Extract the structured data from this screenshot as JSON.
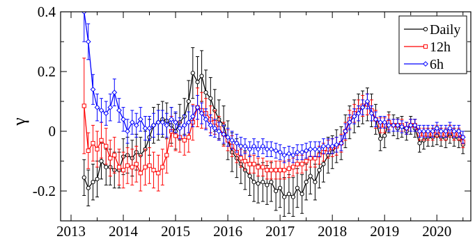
{
  "chart_data": {
    "type": "line",
    "xlabel": "",
    "ylabel": "γ",
    "xlim": [
      2012.8,
      2020.65
    ],
    "ylim": [
      -0.3,
      0.4
    ],
    "xticks": [
      2013,
      2014,
      2015,
      2016,
      2017,
      2018,
      2019,
      2020
    ],
    "yticks": [
      -0.2,
      0,
      0.2,
      0.4
    ],
    "ytick_labels": [
      "-0.2",
      "0",
      "0.2",
      "0.4"
    ],
    "legend_position": "top-right",
    "grid": false,
    "series": [
      {
        "name": "Daily",
        "color": "#000000",
        "marker": "circle",
        "x": [
          2013.25,
          2013.33,
          2013.42,
          2013.5,
          2013.58,
          2013.67,
          2013.75,
          2013.83,
          2013.92,
          2014.0,
          2014.08,
          2014.17,
          2014.25,
          2014.33,
          2014.42,
          2014.5,
          2014.58,
          2014.67,
          2014.75,
          2014.83,
          2014.92,
          2015.0,
          2015.08,
          2015.17,
          2015.25,
          2015.33,
          2015.42,
          2015.5,
          2015.58,
          2015.67,
          2015.75,
          2015.83,
          2015.92,
          2016.0,
          2016.08,
          2016.17,
          2016.25,
          2016.33,
          2016.42,
          2016.5,
          2016.58,
          2016.67,
          2016.75,
          2016.83,
          2016.92,
          2017.0,
          2017.08,
          2017.17,
          2017.25,
          2017.33,
          2017.42,
          2017.5,
          2017.58,
          2017.67,
          2017.75,
          2017.83,
          2017.92,
          2018.0,
          2018.08,
          2018.17,
          2018.25,
          2018.33,
          2018.42,
          2018.5,
          2018.58,
          2018.67,
          2018.75,
          2018.83,
          2018.92,
          2019.0,
          2019.08,
          2019.17,
          2019.25,
          2019.33,
          2019.42,
          2019.5,
          2019.58,
          2019.67,
          2019.75,
          2019.83,
          2019.92,
          2020.0,
          2020.08,
          2020.17,
          2020.25,
          2020.33,
          2020.42,
          2020.5
        ],
        "values": [
          -0.155,
          -0.19,
          -0.17,
          -0.16,
          -0.1,
          -0.12,
          -0.12,
          -0.13,
          -0.13,
          -0.085,
          -0.08,
          -0.09,
          -0.07,
          -0.08,
          -0.06,
          -0.02,
          0.02,
          0.03,
          0.04,
          0.035,
          0.02,
          0.0,
          0.03,
          0.05,
          0.1,
          0.195,
          0.165,
          0.185,
          0.13,
          0.11,
          0.07,
          0.04,
          0.02,
          -0.03,
          -0.07,
          -0.09,
          -0.11,
          -0.13,
          -0.15,
          -0.17,
          -0.175,
          -0.17,
          -0.18,
          -0.17,
          -0.2,
          -0.19,
          -0.22,
          -0.21,
          -0.22,
          -0.19,
          -0.21,
          -0.17,
          -0.15,
          -0.17,
          -0.13,
          -0.11,
          -0.08,
          -0.07,
          -0.05,
          -0.04,
          0.0,
          0.03,
          0.05,
          0.07,
          0.08,
          0.09,
          0.07,
          0.04,
          -0.025,
          -0.015,
          0.03,
          0.02,
          0.01,
          0.015,
          0.0,
          0.02,
          0.01,
          -0.04,
          -0.03,
          -0.02,
          -0.02,
          -0.015,
          -0.02,
          -0.025,
          -0.01,
          -0.02,
          -0.025,
          -0.045
        ],
        "err": [
          0.06,
          0.06,
          0.06,
          0.06,
          0.06,
          0.06,
          0.06,
          0.06,
          0.06,
          0.06,
          0.06,
          0.06,
          0.06,
          0.06,
          0.06,
          0.06,
          0.06,
          0.06,
          0.06,
          0.06,
          0.06,
          0.06,
          0.06,
          0.06,
          0.07,
          0.085,
          0.085,
          0.085,
          0.075,
          0.07,
          0.07,
          0.065,
          0.065,
          0.065,
          0.065,
          0.065,
          0.065,
          0.065,
          0.065,
          0.065,
          0.065,
          0.065,
          0.065,
          0.065,
          0.065,
          0.065,
          0.065,
          0.065,
          0.065,
          0.065,
          0.065,
          0.06,
          0.06,
          0.06,
          0.06,
          0.06,
          0.06,
          0.055,
          0.055,
          0.055,
          0.055,
          0.055,
          0.055,
          0.055,
          0.055,
          0.055,
          0.055,
          0.05,
          0.04,
          0.04,
          0.035,
          0.035,
          0.035,
          0.035,
          0.03,
          0.03,
          0.03,
          0.03,
          0.03,
          0.03,
          0.03,
          0.03,
          0.03,
          0.03,
          0.03,
          0.03,
          0.03,
          0.03
        ]
      },
      {
        "name": "12h",
        "color": "#ff0000",
        "marker": "square",
        "x": [
          2013.25,
          2013.33,
          2013.42,
          2013.5,
          2013.58,
          2013.67,
          2013.75,
          2013.83,
          2013.92,
          2014.0,
          2014.08,
          2014.17,
          2014.25,
          2014.33,
          2014.42,
          2014.5,
          2014.58,
          2014.67,
          2014.75,
          2014.83,
          2014.92,
          2015.0,
          2015.08,
          2015.17,
          2015.25,
          2015.33,
          2015.42,
          2015.5,
          2015.58,
          2015.67,
          2015.75,
          2015.83,
          2015.92,
          2016.0,
          2016.08,
          2016.17,
          2016.25,
          2016.33,
          2016.42,
          2016.5,
          2016.58,
          2016.67,
          2016.75,
          2016.83,
          2016.92,
          2017.0,
          2017.08,
          2017.17,
          2017.25,
          2017.33,
          2017.42,
          2017.5,
          2017.58,
          2017.67,
          2017.75,
          2017.83,
          2017.92,
          2018.0,
          2018.08,
          2018.17,
          2018.25,
          2018.33,
          2018.42,
          2018.5,
          2018.58,
          2018.67,
          2018.75,
          2018.83,
          2018.92,
          2019.0,
          2019.08,
          2019.17,
          2019.25,
          2019.33,
          2019.42,
          2019.5,
          2019.58,
          2019.67,
          2019.75,
          2019.83,
          2019.92,
          2020.0,
          2020.08,
          2020.17,
          2020.25,
          2020.33,
          2020.42,
          2020.5
        ],
        "values": [
          0.085,
          -0.065,
          -0.04,
          -0.06,
          -0.03,
          -0.05,
          -0.09,
          -0.08,
          -0.12,
          -0.13,
          -0.115,
          -0.12,
          -0.11,
          -0.14,
          -0.12,
          -0.115,
          -0.13,
          -0.14,
          -0.12,
          -0.08,
          0.0,
          -0.015,
          -0.02,
          -0.03,
          -0.02,
          0.03,
          0.08,
          0.07,
          0.06,
          0.04,
          0.03,
          0.01,
          -0.01,
          -0.03,
          -0.05,
          -0.07,
          -0.09,
          -0.1,
          -0.11,
          -0.11,
          -0.12,
          -0.12,
          -0.13,
          -0.13,
          -0.13,
          -0.13,
          -0.13,
          -0.125,
          -0.12,
          -0.11,
          -0.11,
          -0.1,
          -0.09,
          -0.09,
          -0.08,
          -0.07,
          -0.06,
          -0.055,
          -0.05,
          -0.04,
          0.0,
          0.04,
          0.06,
          0.07,
          0.085,
          0.09,
          0.07,
          0.04,
          0.02,
          0.02,
          0.03,
          0.02,
          0.02,
          0.02,
          0.01,
          0.02,
          0.02,
          -0.01,
          -0.01,
          -0.01,
          -0.01,
          0.0,
          -0.01,
          -0.01,
          0.0,
          -0.01,
          -0.01,
          -0.035
        ],
        "err": [
          0.16,
          0.06,
          0.06,
          0.06,
          0.06,
          0.06,
          0.06,
          0.06,
          0.06,
          0.06,
          0.06,
          0.06,
          0.06,
          0.06,
          0.06,
          0.06,
          0.06,
          0.06,
          0.06,
          0.06,
          0.05,
          0.05,
          0.05,
          0.05,
          0.05,
          0.06,
          0.065,
          0.06,
          0.05,
          0.045,
          0.04,
          0.04,
          0.04,
          0.035,
          0.035,
          0.035,
          0.03,
          0.03,
          0.03,
          0.03,
          0.03,
          0.03,
          0.03,
          0.03,
          0.03,
          0.03,
          0.03,
          0.03,
          0.03,
          0.03,
          0.03,
          0.03,
          0.03,
          0.03,
          0.03,
          0.03,
          0.03,
          0.03,
          0.03,
          0.03,
          0.03,
          0.03,
          0.03,
          0.035,
          0.035,
          0.035,
          0.035,
          0.03,
          0.025,
          0.025,
          0.025,
          0.02,
          0.02,
          0.02,
          0.02,
          0.02,
          0.02,
          0.02,
          0.02,
          0.02,
          0.02,
          0.02,
          0.02,
          0.02,
          0.02,
          0.02,
          0.02,
          0.02
        ]
      },
      {
        "name": "6h",
        "color": "#0000ff",
        "marker": "diamond",
        "x": [
          2013.25,
          2013.33,
          2013.42,
          2013.5,
          2013.58,
          2013.67,
          2013.75,
          2013.83,
          2013.92,
          2014.0,
          2014.08,
          2014.17,
          2014.25,
          2014.33,
          2014.42,
          2014.5,
          2014.58,
          2014.67,
          2014.75,
          2014.83,
          2014.92,
          2015.0,
          2015.08,
          2015.17,
          2015.25,
          2015.33,
          2015.42,
          2015.5,
          2015.58,
          2015.67,
          2015.75,
          2015.83,
          2015.92,
          2016.0,
          2016.08,
          2016.17,
          2016.25,
          2016.33,
          2016.42,
          2016.5,
          2016.58,
          2016.67,
          2016.75,
          2016.83,
          2016.92,
          2017.0,
          2017.08,
          2017.17,
          2017.25,
          2017.33,
          2017.42,
          2017.5,
          2017.58,
          2017.67,
          2017.75,
          2017.83,
          2017.92,
          2018.0,
          2018.08,
          2018.17,
          2018.25,
          2018.33,
          2018.42,
          2018.5,
          2018.58,
          2018.67,
          2018.75,
          2018.83,
          2018.92,
          2019.0,
          2019.08,
          2019.17,
          2019.25,
          2019.33,
          2019.42,
          2019.5,
          2019.58,
          2019.67,
          2019.75,
          2019.83,
          2019.92,
          2020.0,
          2020.08,
          2020.17,
          2020.25,
          2020.33,
          2020.42,
          2020.5
        ],
        "values": [
          0.4,
          0.3,
          0.14,
          0.08,
          0.07,
          0.06,
          0.08,
          0.13,
          0.07,
          0.04,
          0.0,
          0.03,
          0.02,
          0.04,
          0.01,
          0.01,
          0.02,
          0.03,
          0.03,
          0.02,
          0.04,
          0.03,
          0.01,
          0.02,
          0.03,
          0.05,
          0.08,
          0.06,
          0.04,
          0.02,
          0.01,
          0.0,
          -0.01,
          -0.02,
          -0.03,
          -0.04,
          -0.05,
          -0.05,
          -0.06,
          -0.05,
          -0.06,
          -0.05,
          -0.06,
          -0.06,
          -0.065,
          -0.07,
          -0.08,
          -0.075,
          -0.08,
          -0.07,
          -0.07,
          -0.065,
          -0.06,
          -0.06,
          -0.06,
          -0.05,
          -0.05,
          -0.05,
          -0.045,
          -0.04,
          0.0,
          0.03,
          0.05,
          0.06,
          0.08,
          0.1,
          0.06,
          0.04,
          0.03,
          0.03,
          0.02,
          0.02,
          0.02,
          0.015,
          0.01,
          0.02,
          0.02,
          0.0,
          0.0,
          0.0,
          0.0,
          0.01,
          0.0,
          0.0,
          0.01,
          0.0,
          0.0,
          -0.02
        ],
        "err": [
          0.1,
          0.06,
          0.05,
          0.045,
          0.04,
          0.04,
          0.045,
          0.045,
          0.04,
          0.04,
          0.04,
          0.04,
          0.04,
          0.04,
          0.04,
          0.04,
          0.04,
          0.04,
          0.04,
          0.04,
          0.04,
          0.035,
          0.035,
          0.035,
          0.035,
          0.035,
          0.04,
          0.035,
          0.035,
          0.035,
          0.03,
          0.03,
          0.03,
          0.03,
          0.03,
          0.03,
          0.03,
          0.025,
          0.025,
          0.025,
          0.025,
          0.025,
          0.025,
          0.025,
          0.025,
          0.025,
          0.025,
          0.025,
          0.025,
          0.025,
          0.025,
          0.025,
          0.025,
          0.025,
          0.025,
          0.025,
          0.025,
          0.025,
          0.025,
          0.025,
          0.025,
          0.025,
          0.025,
          0.025,
          0.025,
          0.025,
          0.025,
          0.025,
          0.02,
          0.02,
          0.02,
          0.02,
          0.02,
          0.02,
          0.02,
          0.02,
          0.02,
          0.02,
          0.02,
          0.02,
          0.02,
          0.02,
          0.02,
          0.02,
          0.02,
          0.02,
          0.02,
          0.02
        ]
      }
    ]
  }
}
